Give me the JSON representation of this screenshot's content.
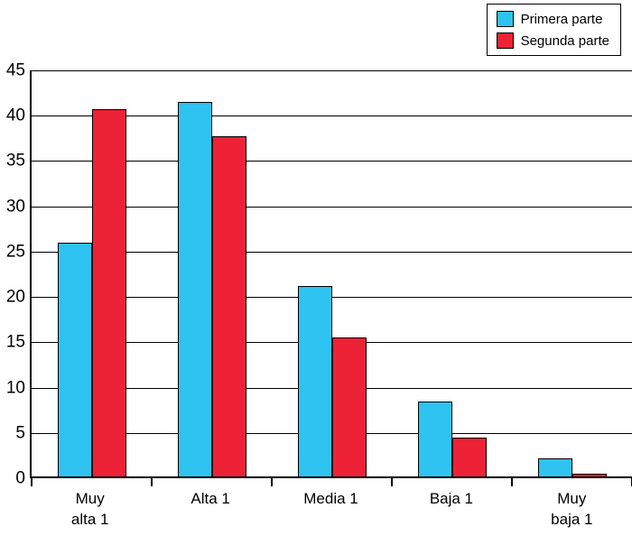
{
  "legend": {
    "items": [
      {
        "label": "Primera parte",
        "color": "#2EC3F0"
      },
      {
        "label": "Segunda parte",
        "color": "#EE2236"
      }
    ]
  },
  "chart_data": {
    "type": "bar",
    "title": "",
    "xlabel": "",
    "ylabel": "",
    "categories": [
      "Muy\nalta 1",
      "Alta 1",
      "Media 1",
      "Baja 1",
      "Muy\nbaja 1"
    ],
    "series": [
      {
        "name": "Primera parte",
        "color": "#2EC3F0",
        "values": [
          26,
          41.5,
          21.2,
          8.5,
          2.2
        ]
      },
      {
        "name": "Segunda parte",
        "color": "#EE2236",
        "values": [
          40.7,
          37.7,
          15.5,
          4.5,
          0.5
        ]
      }
    ],
    "ylim": [
      0,
      45
    ],
    "ytick_step": 5,
    "grid": true,
    "legend_position": "top-right"
  }
}
